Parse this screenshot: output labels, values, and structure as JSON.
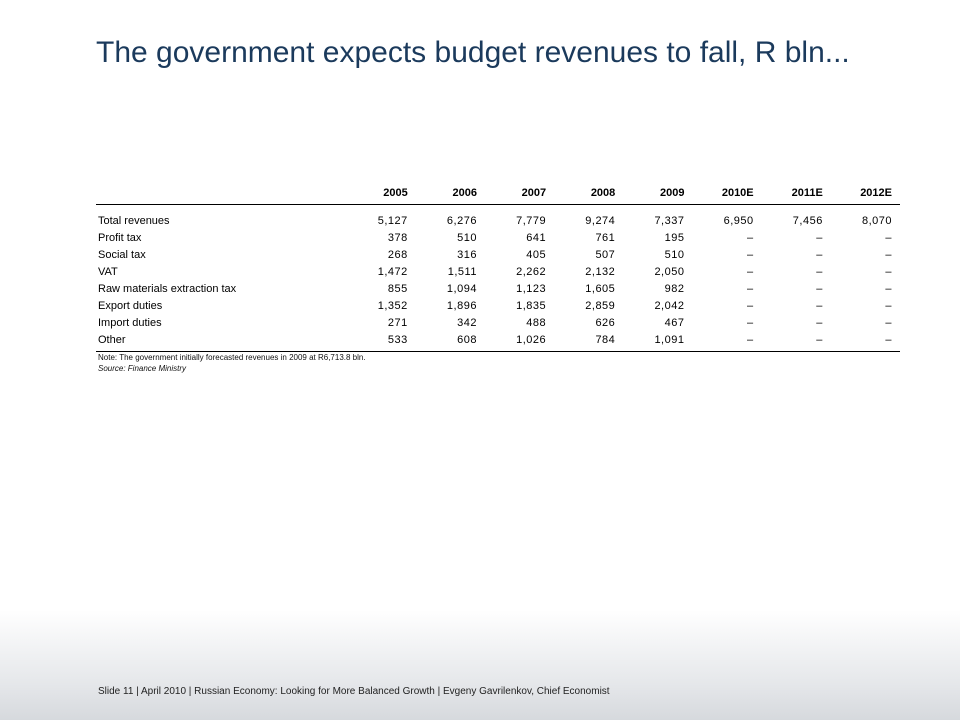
{
  "slide": {
    "title": "The government expects budget revenues to fall, R bln..."
  },
  "table": {
    "columns": [
      "",
      "2005",
      "2006",
      "2007",
      "2008",
      "2009",
      "2010E",
      "2011E",
      "2012E"
    ],
    "rows": [
      {
        "label": "Total revenues",
        "values": [
          "5,127",
          "6,276",
          "7,779",
          "9,274",
          "7,337",
          "6,950",
          "7,456",
          "8,070"
        ]
      },
      {
        "label": "Profit tax",
        "values": [
          "378",
          "510",
          "641",
          "761",
          "195",
          "–",
          "–",
          "–"
        ]
      },
      {
        "label": "Social tax",
        "values": [
          "268",
          "316",
          "405",
          "507",
          "510",
          "–",
          "–",
          "–"
        ]
      },
      {
        "label": "VAT",
        "values": [
          "1,472",
          "1,511",
          "2,262",
          "2,132",
          "2,050",
          "–",
          "–",
          "–"
        ]
      },
      {
        "label": "Raw materials extraction tax",
        "values": [
          "855",
          "1,094",
          "1,123",
          "1,605",
          "982",
          "–",
          "–",
          "–"
        ]
      },
      {
        "label": "Export duties",
        "values": [
          "1,352",
          "1,896",
          "1,835",
          "2,859",
          "2,042",
          "–",
          "–",
          "–"
        ]
      },
      {
        "label": "Import duties",
        "values": [
          "271",
          "342",
          "488",
          "626",
          "467",
          "–",
          "–",
          "–"
        ]
      },
      {
        "label": "Other",
        "values": [
          "533",
          "608",
          "1,026",
          "784",
          "1,091",
          "–",
          "–",
          "–"
        ]
      }
    ]
  },
  "note": {
    "text": "Note: The government initially forecasted revenues in 2009 at R6,713.8 bln.",
    "source": "Source: Finance Ministry"
  },
  "footer": {
    "text": "Slide 11  | April 2010 | Russian Economy: Looking for More Balanced Growth | Evgeny Gavrilenkov, Chief Economist"
  }
}
